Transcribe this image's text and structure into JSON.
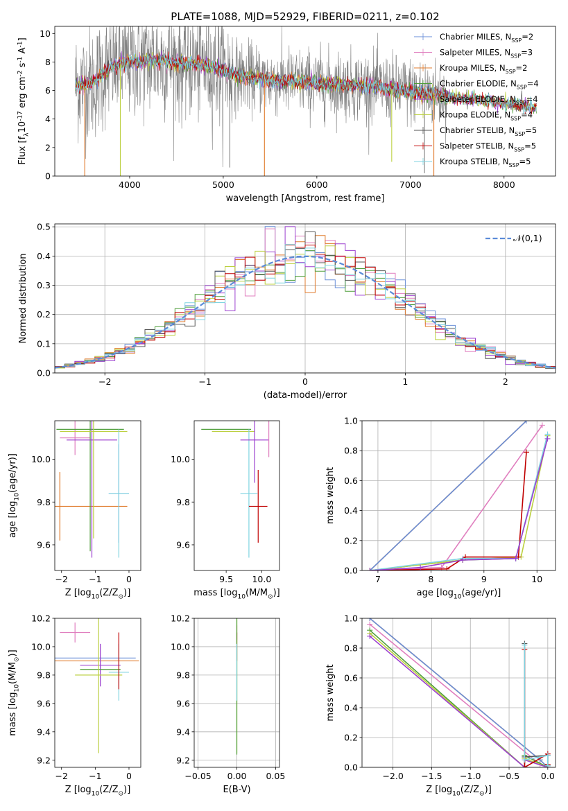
{
  "figure": {
    "title": "PLATE=1088, MJD=52929, FIBERID=0211, z=0.102"
  },
  "colors": {
    "chabrier_miles": "#6a8fd8",
    "salpeter_miles": "#e07fbf",
    "kroupa_miles": "#e07b2c",
    "chabrier_elodie": "#4f9e3a",
    "salpeter_elodie": "#9b3fcf",
    "kroupa_elodie": "#bcd040",
    "chabrier_stelib": "#555555",
    "salpeter_stelib": "#c00000",
    "kroupa_stelib": "#7fd3e0",
    "spectrum_grey": "#808080",
    "gaussian": "#5b8bd8"
  },
  "chart_data": [
    {
      "id": "spectrum",
      "type": "line",
      "xlabel": "wavelength [Angstrom, rest frame]",
      "ylabel": "Flux [f$_\\lambda$10$^{-17}$ erg cm$^{-2}$ s$^{-1}$ A$^{-1}$]",
      "xlim": [
        3200,
        8550
      ],
      "ylim": [
        0,
        10.5
      ],
      "xticks": [
        4000,
        5000,
        6000,
        7000,
        8000
      ],
      "yticks": [
        0,
        2,
        4,
        6,
        8,
        10
      ],
      "legend": {
        "position": "top-right",
        "entries": [
          "Chabrier MILES, N$_{SSP}$=2",
          "Salpeter MILES, N$_{SSP}$=3",
          "Kroupa MILES, N$_{SSP}$=2",
          "Chabrier ELODIE, N$_{SSP}$=4",
          "Salpeter ELODIE, N$_{SSP}$=4",
          "Kroupa ELODIE, N$_{SSP}$=4",
          "Chabrier STELIB, N$_{SSP}$=5",
          "Salpeter STELIB, N$_{SSP}$=5",
          "Kroupa STELIB, N$_{SSP}$=5"
        ]
      },
      "continuum": [
        [
          3420,
          6.4
        ],
        [
          3600,
          6.5
        ],
        [
          3800,
          7.7
        ],
        [
          4000,
          8.0
        ],
        [
          4200,
          8.1
        ],
        [
          4400,
          8.1
        ],
        [
          4600,
          7.9
        ],
        [
          4800,
          7.8
        ],
        [
          5000,
          7.4
        ],
        [
          5200,
          7.0
        ],
        [
          5500,
          6.7
        ],
        [
          5800,
          6.6
        ],
        [
          6000,
          6.5
        ],
        [
          6300,
          6.4
        ],
        [
          6600,
          6.3
        ],
        [
          6900,
          6.0
        ],
        [
          7200,
          5.8
        ],
        [
          7500,
          5.5
        ],
        [
          7800,
          5.3
        ],
        [
          8100,
          5.0
        ],
        [
          8350,
          4.8
        ]
      ],
      "dropouts": [
        [
          3520,
          0.0
        ],
        [
          3900,
          0.0
        ],
        [
          5070,
          0.6
        ],
        [
          5440,
          0.0
        ],
        [
          6800,
          1.0
        ],
        [
          7150,
          0.2
        ],
        [
          7250,
          0.0
        ]
      ]
    },
    {
      "id": "residuals",
      "type": "bar",
      "xlabel": "(data-model)/error",
      "ylabel": "Normed distribution",
      "xlim": [
        -2.5,
        2.5
      ],
      "ylim": [
        0,
        0.51
      ],
      "xticks": [
        -2,
        -1,
        0,
        1,
        2
      ],
      "yticks": [
        0.0,
        0.1,
        0.2,
        0.3,
        0.4,
        0.5
      ],
      "grid": true,
      "legend": {
        "position": "top-right",
        "entries": [
          "$\\mathcal{N}(0,1)$"
        ]
      }
    },
    {
      "id": "age-vs-z",
      "type": "scatter",
      "xlabel": "Z [log$_{10}$(Z/Z$_\\odot$)]",
      "ylabel": "age  [log$_{10}$(age/yr)]",
      "xlim": [
        -2.2,
        0.35
      ],
      "ylim": [
        9.48,
        10.18
      ],
      "xticks": [
        -2,
        -1,
        0
      ],
      "yticks": [
        9.6,
        9.8,
        10.0
      ],
      "points": [
        {
          "x": -2.05,
          "y": 9.78,
          "xerr": 2.0,
          "yerr": 0.16,
          "model": "kroupa_miles"
        },
        {
          "x": -1.6,
          "y": 10.1,
          "xerr": 0.45,
          "yerr": 0.08,
          "model": "salpeter_miles"
        },
        {
          "x": -1.15,
          "y": 10.14,
          "xerr": 1.0,
          "yerr": 0.57,
          "model": "chabrier_elodie"
        },
        {
          "x": -1.1,
          "y": 10.09,
          "xerr": 0.75,
          "yerr": 0.55,
          "model": "salpeter_elodie"
        },
        {
          "x": -1.05,
          "y": 10.13,
          "xerr": 1.0,
          "yerr": 0.5,
          "model": "kroupa_elodie"
        },
        {
          "x": -0.3,
          "y": 9.84,
          "xerr": 0.3,
          "yerr": 0.23,
          "model": "chabrier_miles"
        },
        {
          "x": -0.3,
          "y": 9.84,
          "xerr": 0.3,
          "yerr": 0.3,
          "model": "kroupa_stelib"
        }
      ]
    },
    {
      "id": "age-vs-mass",
      "type": "scatter",
      "xlabel": "mass [log$_{10}$(M/M$_\\odot$)]",
      "ylabel": "",
      "xlim": [
        9.05,
        10.25
      ],
      "ylim": [
        9.48,
        10.18
      ],
      "xticks": [
        9.5,
        10.0
      ],
      "yticks": [
        9.6,
        9.8,
        10.0
      ],
      "points": [
        {
          "x": 9.5,
          "y": 10.14,
          "xerr": 0.35,
          "yerr": 0.0,
          "model": "chabrier_elodie"
        },
        {
          "x": 9.6,
          "y": 10.13,
          "xerr": 0.3,
          "yerr": 0.0,
          "model": "kroupa_elodie"
        },
        {
          "x": 9.82,
          "y": 9.84,
          "xerr": 0.12,
          "yerr": 0.3,
          "model": "kroupa_stelib"
        },
        {
          "x": 9.9,
          "y": 10.09,
          "xerr": 0.2,
          "yerr": 0.2,
          "model": "salpeter_elodie"
        },
        {
          "x": 9.95,
          "y": 9.78,
          "xerr": 0.13,
          "yerr": 0.17,
          "model": "salpeter_stelib"
        },
        {
          "x": 10.1,
          "y": 10.1,
          "xerr": 0.0,
          "yerr": 0.09,
          "model": "salpeter_miles"
        }
      ]
    },
    {
      "id": "massweight-vs-age",
      "type": "line",
      "xlabel": "age  [log$_{10}$(age/yr)]",
      "ylabel": "mass weight",
      "xlim": [
        6.7,
        10.35
      ],
      "ylim": [
        0,
        1.0
      ],
      "xticks": [
        7,
        8,
        9,
        10
      ],
      "yticks": [
        0.0,
        0.2,
        0.4,
        0.6,
        0.8,
        1.0
      ],
      "grid": true,
      "series": [
        {
          "model": "kroupa_miles",
          "x": [
            6.85,
            9.8
          ],
          "y": [
            0.0,
            1.0
          ]
        },
        {
          "model": "chabrier_miles",
          "x": [
            6.85,
            9.8
          ],
          "y": [
            0.0,
            1.0
          ]
        },
        {
          "model": "salpeter_miles",
          "x": [
            6.85,
            8.2,
            10.1
          ],
          "y": [
            0.0,
            0.02,
            0.97
          ]
        },
        {
          "model": "chabrier_elodie",
          "x": [
            6.85,
            8.6,
            9.6,
            10.2
          ],
          "y": [
            0.0,
            0.07,
            0.08,
            0.9
          ]
        },
        {
          "model": "kroupa_elodie",
          "x": [
            6.85,
            8.6,
            9.7,
            10.2
          ],
          "y": [
            0.0,
            0.07,
            0.09,
            0.9
          ]
        },
        {
          "model": "salpeter_stelib",
          "x": [
            6.85,
            8.3,
            8.65,
            9.65,
            9.8
          ],
          "y": [
            0.0,
            0.01,
            0.09,
            0.09,
            0.79
          ]
        },
        {
          "model": "kroupa_stelib",
          "x": [
            6.85,
            8.6,
            9.6,
            10.2
          ],
          "y": [
            0.0,
            0.08,
            0.08,
            0.91
          ]
        },
        {
          "model": "salpeter_elodie",
          "x": [
            6.85,
            7.8,
            8.6,
            9.6,
            10.2
          ],
          "y": [
            0.0,
            0.02,
            0.07,
            0.08,
            0.88
          ]
        }
      ]
    },
    {
      "id": "mass-vs-z",
      "type": "scatter",
      "xlabel": "Z [log$_{10}$(Z/Z$_\\odot$)]",
      "ylabel": "mass [log$_{10}$(M/M$_\\odot$)]",
      "xlim": [
        -2.2,
        0.35
      ],
      "ylim": [
        9.15,
        10.2
      ],
      "xticks": [
        -2,
        -1,
        0
      ],
      "yticks": [
        9.2,
        9.4,
        9.6,
        9.8,
        10.0,
        10.2
      ],
      "points": [
        {
          "x": -1.6,
          "y": 10.1,
          "xerr": 0.45,
          "yerr": 0.07,
          "model": "salpeter_miles"
        },
        {
          "x": -1.0,
          "y": 9.92,
          "xerr": 1.2,
          "yerr": 0.0,
          "model": "chabrier_miles"
        },
        {
          "x": -1.0,
          "y": 9.9,
          "xerr": 1.3,
          "yerr": 0.0,
          "model": "kroupa_miles"
        },
        {
          "x": -0.85,
          "y": 9.87,
          "xerr": 0.6,
          "yerr": 0.15,
          "model": "salpeter_elodie"
        },
        {
          "x": -0.85,
          "y": 9.84,
          "xerr": 0.6,
          "yerr": 0.0,
          "model": "chabrier_elodie"
        },
        {
          "x": -0.9,
          "y": 9.8,
          "xerr": 0.7,
          "yerr": 0.55,
          "model": "kroupa_elodie"
        },
        {
          "x": -0.3,
          "y": 9.82,
          "xerr": 0.3,
          "yerr": 0.2,
          "model": "kroupa_stelib"
        },
        {
          "x": -0.3,
          "y": 9.9,
          "xerr": 0.0,
          "yerr": 0.2,
          "model": "salpeter_stelib"
        }
      ]
    },
    {
      "id": "mass-vs-ebv",
      "type": "scatter",
      "xlabel": "E(B-V)",
      "ylabel": "",
      "xlim": [
        -0.055,
        0.055
      ],
      "ylim": [
        9.15,
        10.2
      ],
      "xticks": [
        -0.05,
        0.0,
        0.05
      ],
      "yticks": [
        9.2,
        9.4,
        9.6,
        9.8,
        10.0,
        10.2
      ],
      "grid": true,
      "points": [
        {
          "x": 0.0,
          "y": 10.1,
          "xerr": 0.0,
          "yerr": 0.05,
          "model": "salpeter_miles"
        },
        {
          "x": 0.0,
          "y": 10.0,
          "xerr": 0.0,
          "yerr": 0.1,
          "model": "salpeter_stelib"
        },
        {
          "x": 0.0,
          "y": 9.8,
          "xerr": 0.0,
          "yerr": 0.55,
          "model": "kroupa_elodie"
        },
        {
          "x": 0.0,
          "y": 9.84,
          "xerr": 0.0,
          "yerr": 0.6,
          "model": "chabrier_elodie"
        },
        {
          "x": 0.0,
          "y": 9.82,
          "xerr": 0.0,
          "yerr": 0.2,
          "model": "kroupa_stelib"
        }
      ]
    },
    {
      "id": "massweight-vs-z",
      "type": "line",
      "xlabel": "Z [log$_{10}$(Z/Z$_\\odot$)]",
      "ylabel": "mass weight",
      "xlim": [
        -2.4,
        0.1
      ],
      "ylim": [
        0,
        1.0
      ],
      "xticks": [
        -2.0,
        -1.5,
        -1.0,
        -0.5,
        0.0
      ],
      "yticks": [
        0.0,
        0.2,
        0.4,
        0.6,
        0.8,
        1.0
      ],
      "grid": true,
      "series": [
        {
          "model": "kroupa_miles",
          "x": [
            -2.3,
            -0.1,
            0.0
          ],
          "y": [
            1.0,
            0.05,
            0.0
          ]
        },
        {
          "model": "chabrier_miles",
          "x": [
            -2.3,
            -0.1,
            0.0
          ],
          "y": [
            1.0,
            0.05,
            0.0
          ]
        },
        {
          "model": "salpeter_miles",
          "x": [
            -2.3,
            -0.1,
            0.0
          ],
          "y": [
            0.96,
            0.02,
            0.0
          ]
        },
        {
          "model": "chabrier_elodie",
          "x": [
            -2.3,
            -0.3,
            -0.3,
            0.0
          ],
          "y": [
            0.92,
            0.0,
            0.08,
            0.0
          ]
        },
        {
          "model": "kroupa_elodie",
          "x": [
            -2.3,
            -0.3,
            -0.3,
            0.0
          ],
          "y": [
            0.9,
            0.0,
            0.06,
            0.0
          ]
        },
        {
          "model": "salpeter_elodie",
          "x": [
            -2.3,
            -0.3,
            -0.3,
            0.0
          ],
          "y": [
            0.88,
            0.0,
            0.05,
            0.0
          ]
        },
        {
          "model": "chabrier_stelib",
          "x": [
            -0.3,
            -0.3,
            0.0,
            0.0
          ],
          "y": [
            0.83,
            0.07,
            0.08,
            0.01
          ]
        },
        {
          "model": "salpeter_stelib",
          "x": [
            -0.3,
            -0.3,
            0.0,
            0.0
          ],
          "y": [
            0.79,
            0.0,
            0.09,
            0.02
          ]
        },
        {
          "model": "kroupa_stelib",
          "x": [
            -0.3,
            -0.3,
            0.0,
            0.0
          ],
          "y": [
            0.82,
            0.05,
            0.08,
            0.01
          ]
        }
      ]
    }
  ]
}
